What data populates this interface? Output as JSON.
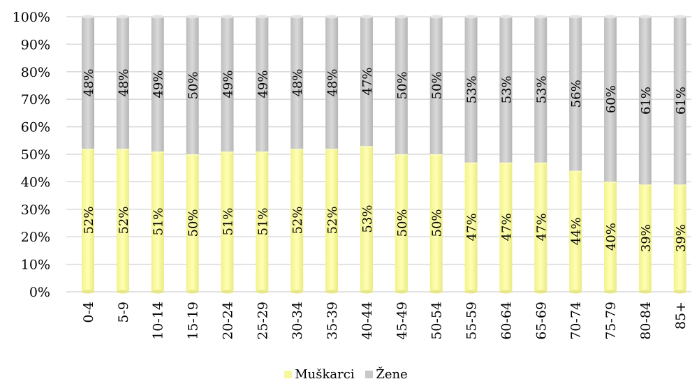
{
  "chart_data": {
    "type": "bar",
    "stacked": true,
    "percent_stacked": true,
    "categories": [
      "0-4",
      "5-9",
      "10-14",
      "15-19",
      "20-24",
      "25-29",
      "30-34",
      "35-39",
      "40-44",
      "45-49",
      "50-54",
      "55-59",
      "60-64",
      "65-69",
      "70-74",
      "75-79",
      "80-84",
      "85+"
    ],
    "series": [
      {
        "name": "Muškarci",
        "color": "#f7f79e",
        "values": [
          52,
          52,
          51,
          50,
          51,
          51,
          52,
          52,
          53,
          50,
          50,
          47,
          47,
          47,
          44,
          40,
          39,
          39
        ],
        "labels": [
          "52%",
          "52%",
          "51%",
          "50%",
          "51%",
          "51%",
          "52%",
          "52%",
          "53%",
          "50%",
          "50%",
          "47%",
          "47%",
          "47%",
          "44%",
          "40%",
          "39%",
          "39%"
        ]
      },
      {
        "name": "Žene",
        "color": "#c8c8c8",
        "values": [
          48,
          48,
          49,
          50,
          49,
          49,
          48,
          48,
          47,
          50,
          50,
          53,
          53,
          53,
          56,
          60,
          61,
          61
        ],
        "labels": [
          "48%",
          "48%",
          "49%",
          "50%",
          "49%",
          "49%",
          "48%",
          "48%",
          "47%",
          "50%",
          "50%",
          "53%",
          "53%",
          "53%",
          "56%",
          "60%",
          "61%",
          "61%"
        ]
      }
    ],
    "yticks": [
      "0%",
      "10%",
      "20%",
      "30%",
      "40%",
      "50%",
      "60%",
      "70%",
      "80%",
      "90%",
      "100%"
    ],
    "ylim": [
      0,
      100
    ],
    "grid": true,
    "legend_position": "bottom"
  }
}
